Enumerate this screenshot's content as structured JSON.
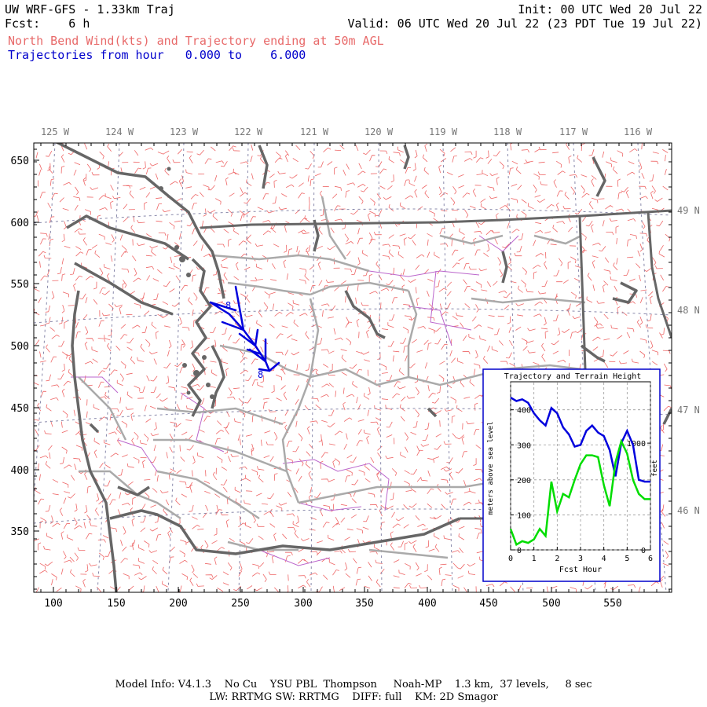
{
  "header": {
    "title": "UW WRF-GFS - 1.33km Traj",
    "fcst": "Fcst:    6 h",
    "init": "Init: 00 UTC Wed 20 Jul 22",
    "valid": "Valid: 06 UTC Wed 20 Jul 22 (23 PDT Tue 19 Jul 22)",
    "subtitle": "North Bend Wind(kts) and Trajectory ending at 50m AGL",
    "traj_line": "Trajectories from hour   0.000 to    6.000"
  },
  "map": {
    "lon_labels": [
      "125 W",
      "124 W",
      "123 W",
      "122 W",
      "121 W",
      "120 W",
      "119 W",
      "118 W",
      "117 W",
      "116 W"
    ],
    "lat_labels": [
      "49 N",
      "48 N",
      "47 N",
      "46 N"
    ],
    "x_ticks": [
      "100",
      "150",
      "200",
      "250",
      "300",
      "350",
      "400",
      "450",
      "500",
      "550"
    ],
    "y_ticks": [
      "650",
      "600",
      "550",
      "500",
      "450",
      "400",
      "350"
    ],
    "traj_marker": "8"
  },
  "inset": {
    "title": "Trajectory and Terrain Height",
    "xlabel": "Fcst Hour",
    "ylabel_left": "meters above sea level",
    "ylabel_right": "feet",
    "y_ticks_left": [
      "400",
      "300",
      "200",
      "100",
      "0"
    ],
    "y_ticks_right": [
      "1000",
      "0"
    ],
    "x_ticks": [
      "0",
      "1",
      "2",
      "3",
      "4",
      "5",
      "6"
    ]
  },
  "chart_data": {
    "type": "line",
    "title": "Trajectory and Terrain Height",
    "xlabel": "Fcst Hour",
    "ylabel": "meters above sea level",
    "xlim": [
      0,
      6
    ],
    "ylim": [
      0,
      480
    ],
    "grid": true,
    "series": [
      {
        "color": "#0000dd",
        "x": [
          0,
          0.25,
          0.5,
          0.75,
          1.0,
          1.25,
          1.5,
          1.75,
          2.0,
          2.25,
          2.5,
          2.75,
          3.0,
          3.25,
          3.5,
          3.75,
          4.0,
          4.25,
          4.5,
          4.75,
          5.0,
          5.25,
          5.5,
          5.75,
          6.0
        ],
        "values": [
          435,
          425,
          430,
          420,
          390,
          370,
          355,
          405,
          390,
          350,
          330,
          295,
          300,
          340,
          355,
          335,
          325,
          285,
          210,
          305,
          340,
          300,
          200,
          195,
          195
        ]
      },
      {
        "color": "#00dd00",
        "x": [
          0,
          0.25,
          0.5,
          0.75,
          1.0,
          1.25,
          1.5,
          1.75,
          2.0,
          2.25,
          2.5,
          2.75,
          3.0,
          3.25,
          3.5,
          3.75,
          4.0,
          4.25,
          4.5,
          4.75,
          5.0,
          5.25,
          5.5,
          5.75,
          6.0
        ],
        "values": [
          60,
          15,
          25,
          20,
          30,
          60,
          40,
          195,
          110,
          160,
          150,
          200,
          245,
          270,
          270,
          265,
          185,
          125,
          250,
          310,
          275,
          200,
          160,
          145,
          145
        ]
      }
    ]
  },
  "footer": {
    "line1": "Model Info: V4.1.3    No Cu    YSU PBL  Thompson     Noah-MP    1.3 km,  37 levels,     8 sec",
    "line2": "LW: RRTMG SW: RRTMG    DIFF: full    KM: 2D Smagor"
  },
  "colors": {
    "wind_barbs": "#ee6666",
    "trajectory": "#0000dd",
    "terrain": "#00dd00",
    "coast": "#666666",
    "borders": "#aaaaaa",
    "county": "#bb66cc"
  }
}
